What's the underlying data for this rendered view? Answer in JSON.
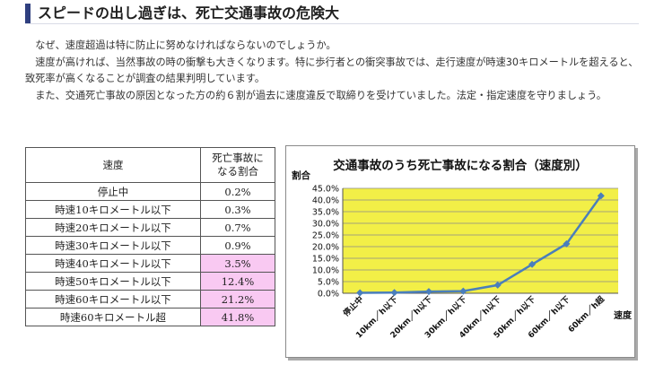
{
  "heading": "スピードの出し過ぎは、死亡交通事故の危険大",
  "paragraphs": [
    "なぜ、速度超過は特に防止に努めなければならないのでしょうか。",
    "速度が高ければ、当然事故の時の衝撃も大きくなります。特に歩行者との衝突事故では、走行速度が時速30キロメートルを超えると、致死率が高くなることが調査の結果判明しています。",
    "また、交通死亡事故の原因となった方の約６割が過去に速度違反で取締りを受けていました。法定・指定速度を守りましょう。"
  ],
  "table": {
    "header_speed": "速度",
    "header_rate_line1": "死亡事故に",
    "header_rate_line2": "なる割合",
    "rows": [
      {
        "speed": "停止中",
        "rate": "0.2%",
        "highlight": false
      },
      {
        "speed": "時速10キロメートル以下",
        "rate": "0.3%",
        "highlight": false
      },
      {
        "speed": "時速20キロメートル以下",
        "rate": "0.7%",
        "highlight": false
      },
      {
        "speed": "時速30キロメートル以下",
        "rate": "0.9%",
        "highlight": false
      },
      {
        "speed": "時速40キロメートル以下",
        "rate": "3.5%",
        "highlight": true
      },
      {
        "speed": "時速50キロメートル以下",
        "rate": "12.4%",
        "highlight": true
      },
      {
        "speed": "時速60キロメートル以下",
        "rate": "21.2%",
        "highlight": true
      },
      {
        "speed": "時速60キロメートル超",
        "rate": "41.8%",
        "highlight": true
      }
    ],
    "highlight_color": "#f9c9f2"
  },
  "chart_data": {
    "type": "line",
    "title": "交通事故のうち死亡事故になる割合（速度別）",
    "ylabel": "割合",
    "xlabel": "速度",
    "categories": [
      "停止中",
      "10km／h以下",
      "20km／h以下",
      "30km／h以下",
      "40km／h以下",
      "50km／h以下",
      "60km／h以下",
      "60km／h超"
    ],
    "values": [
      0.2,
      0.3,
      0.7,
      0.9,
      3.5,
      12.4,
      21.2,
      41.8
    ],
    "ylim": [
      0,
      45
    ],
    "yticks": [
      "0.0%",
      "5.0%",
      "10.0%",
      "15.0%",
      "20.0%",
      "25.0%",
      "30.0%",
      "35.0%",
      "40.0%",
      "45.0%"
    ],
    "grid": true,
    "plot_background": "#f2ef47",
    "line_color": "#4a7ebb"
  }
}
